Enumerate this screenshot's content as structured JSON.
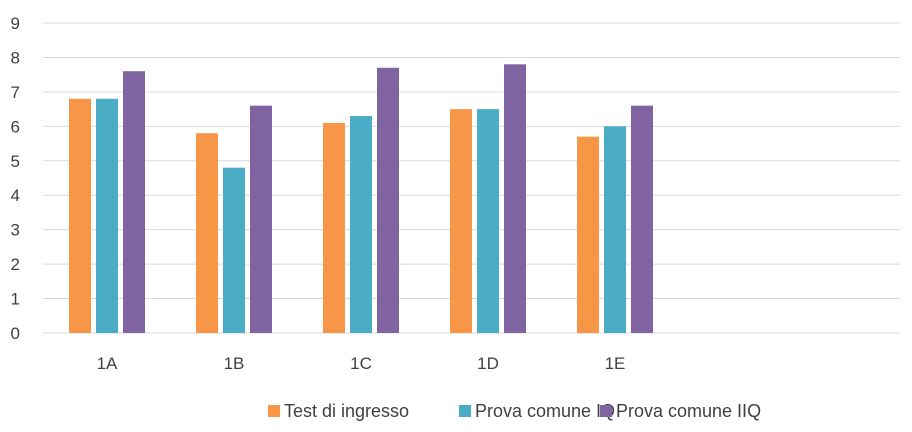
{
  "chart_data": {
    "type": "bar",
    "categories": [
      "1A",
      "1B",
      "1C",
      "1D",
      "1E"
    ],
    "series": [
      {
        "name": "Test di ingresso",
        "color": "#F79646",
        "values": [
          6.8,
          5.8,
          6.1,
          6.5,
          5.7
        ]
      },
      {
        "name": "Prova comune IQ",
        "color": "#4BACC6",
        "values": [
          6.8,
          4.8,
          6.3,
          6.5,
          6.0
        ]
      },
      {
        "name": "Prova comune IIQ",
        "color": "#8064A2",
        "values": [
          7.6,
          6.6,
          7.7,
          7.8,
          6.6
        ]
      }
    ],
    "y_ticks": [
      "0",
      "1",
      "2",
      "3",
      "4",
      "5",
      "6",
      "7",
      "8",
      "9"
    ],
    "ylim": [
      0,
      9
    ],
    "grid": true,
    "legend_position": "bottom",
    "gridline_color": "#D9D9D9",
    "axis_color": "#D9D9D9"
  }
}
